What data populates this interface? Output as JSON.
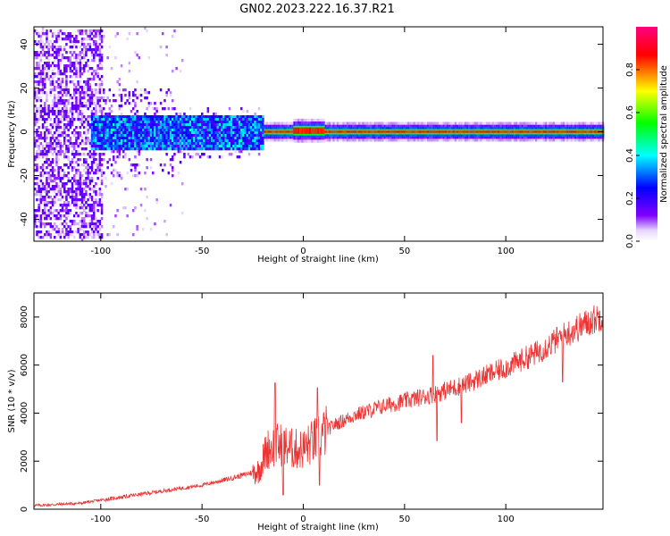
{
  "title": "GN02.2023.222.16.37.R21",
  "chart_data": [
    {
      "type": "heatmap",
      "xlabel": "Height of straight line (km)",
      "ylabel": "Frequency (Hz)",
      "xlim": [
        -133,
        148
      ],
      "ylim": [
        -50,
        48
      ],
      "xticks": [
        -100,
        -50,
        0,
        50,
        100
      ],
      "yticks": [
        -40,
        -20,
        0,
        20,
        40
      ],
      "grid": false,
      "description_of_pattern": "",
      "colorbar": {
        "label": "Normalized spectral amplitude",
        "range": [
          0,
          1
        ],
        "ticks": [
          0.0,
          0.2,
          0.4,
          0.6,
          0.8
        ],
        "colormap": [
          "#ffffff",
          "#7f00ff",
          "#0000ff",
          "#00ffff",
          "#00ff00",
          "#ffff00",
          "#ff0000",
          "#ff0080"
        ]
      }
    },
    {
      "type": "line",
      "xlabel": "Height of straight line (km)",
      "ylabel": "SNR (10 * v/v)",
      "xlim": [
        -133,
        148
      ],
      "ylim": [
        0,
        9000
      ],
      "xticks": [
        -100,
        -50,
        0,
        50,
        100
      ],
      "yticks": [
        0,
        2000,
        4000,
        6000,
        8000
      ],
      "grid": false,
      "color": "#ee3333",
      "trend_points": [
        {
          "x": -133,
          "y": 150
        },
        {
          "x": -110,
          "y": 250
        },
        {
          "x": -90,
          "y": 500
        },
        {
          "x": -70,
          "y": 750
        },
        {
          "x": -50,
          "y": 1000
        },
        {
          "x": -35,
          "y": 1300
        },
        {
          "x": -22,
          "y": 1600
        },
        {
          "x": -18,
          "y": 2500
        },
        {
          "x": -12,
          "y": 2700
        },
        {
          "x": -5,
          "y": 2500
        },
        {
          "x": 0,
          "y": 2500
        },
        {
          "x": 8,
          "y": 3000
        },
        {
          "x": 15,
          "y": 3500
        },
        {
          "x": 25,
          "y": 3900
        },
        {
          "x": 40,
          "y": 4300
        },
        {
          "x": 55,
          "y": 4600
        },
        {
          "x": 65,
          "y": 4800
        },
        {
          "x": 80,
          "y": 5200
        },
        {
          "x": 100,
          "y": 5900
        },
        {
          "x": 115,
          "y": 6500
        },
        {
          "x": 130,
          "y": 7300
        },
        {
          "x": 148,
          "y": 8100
        }
      ],
      "spikes": [
        {
          "x": -14,
          "y": 5250
        },
        {
          "x": 7,
          "y": 5050
        },
        {
          "x": 64,
          "y": 6400
        },
        {
          "x": 66,
          "y": 2850
        },
        {
          "x": 78,
          "y": 3600
        },
        {
          "x": -10,
          "y": 600
        },
        {
          "x": 8,
          "y": 1000
        },
        {
          "x": 128,
          "y": 5300
        }
      ]
    }
  ]
}
